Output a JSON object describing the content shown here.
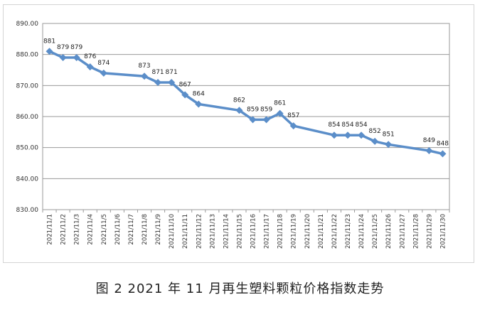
{
  "caption": "图 2  2021 年 11 月再生塑料颗粒价格指数走势",
  "chart_data": {
    "type": "line",
    "title": "",
    "xlabel": "",
    "ylabel": "",
    "ylim": [
      830,
      890
    ],
    "yticks": [
      "830.00",
      "840.00",
      "850.00",
      "860.00",
      "870.00",
      "880.00",
      "890.00"
    ],
    "grid": true,
    "line_color": "#5b8ec9",
    "categories": [
      "2021/11/1",
      "2021/11/2",
      "2021/11/3",
      "2021/11/4",
      "2021/11/5",
      "2021/11/6",
      "2021/11/7",
      "2021/11/8",
      "2021/11/9",
      "2021/11/10",
      "2021/11/11",
      "2021/11/12",
      "2021/11/13",
      "2021/11/14",
      "2021/11/15",
      "2021/11/16",
      "2021/11/17",
      "2021/11/18",
      "2021/11/19",
      "2021/11/20",
      "2021/11/21",
      "2021/11/22",
      "2021/11/23",
      "2021/11/24",
      "2021/11/25",
      "2021/11/26",
      "2021/11/27",
      "2021/11/28",
      "2021/11/29",
      "2021/11/30"
    ],
    "values": [
      881,
      879,
      879,
      876,
      874,
      null,
      null,
      873,
      871,
      871,
      867,
      864,
      null,
      null,
      862,
      859,
      859,
      861,
      857,
      null,
      null,
      854,
      854,
      854,
      852,
      851,
      null,
      null,
      849,
      848
    ],
    "data_labels": [
      "881",
      "879",
      "879",
      "876",
      "874",
      "",
      "",
      "873",
      "871",
      "871",
      "867",
      "864",
      "",
      "",
      "862",
      "859",
      "859",
      "861",
      "857",
      "",
      "",
      "854",
      "854",
      "854",
      "852",
      "851",
      "",
      "",
      "849",
      "848"
    ]
  }
}
